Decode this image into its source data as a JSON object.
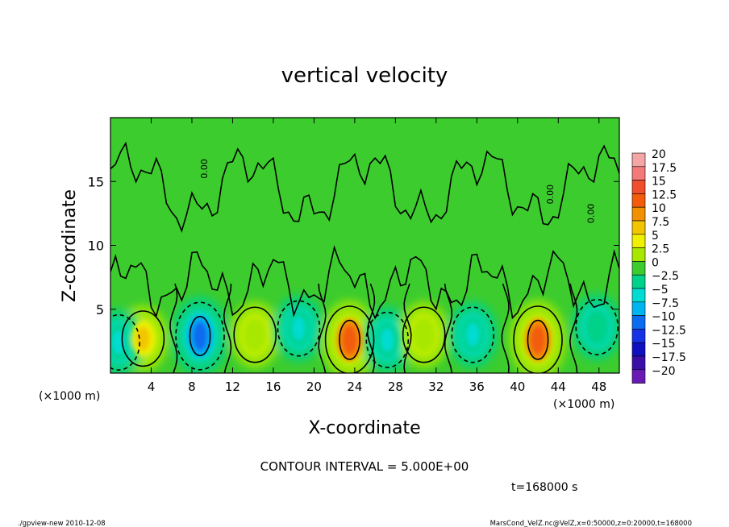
{
  "chart_data": {
    "type": "heatmap",
    "title": "vertical velocity",
    "xlabel": "X-coordinate",
    "ylabel": "Z-coordinate",
    "x_unit_left": "(×1000 m)",
    "x_unit_right": "(×1000 m)",
    "xlim": [
      0,
      50
    ],
    "ylim": [
      0,
      20
    ],
    "x_ticks": [
      4,
      8,
      12,
      16,
      20,
      24,
      28,
      32,
      36,
      40,
      44,
      48
    ],
    "y_ticks": [
      5,
      10,
      15
    ],
    "colorbar": {
      "labels": [
        "20",
        "17.5",
        "15",
        "12.5",
        "10",
        "7.5",
        "5",
        "2.5",
        "0",
        "−2.5",
        "−5",
        "−7.5",
        "−10",
        "−12.5",
        "−15",
        "−17.5",
        "−20"
      ],
      "colors": [
        "#f4a6a6",
        "#f47a7a",
        "#f04e2c",
        "#f25c0a",
        "#f29000",
        "#f2c500",
        "#eef000",
        "#a8e800",
        "#3ccc2e",
        "#00d28a",
        "#00dcd2",
        "#00b4f0",
        "#0a6cf0",
        "#1632e6",
        "#1010c0",
        "#3a0fa8",
        "#6a1ab4"
      ]
    },
    "contour_interval": "CONTOUR INTERVAL = 5.000E+00",
    "time_label": "t=168000 s",
    "zero_label": "0.00",
    "features": [
      {
        "kind": "updraft",
        "x": 3.2,
        "z": 2.7,
        "value": 7.5
      },
      {
        "kind": "downdraft",
        "x": 0.8,
        "z": 2.4,
        "value": -5
      },
      {
        "kind": "downdraft",
        "x": 8.8,
        "z": 2.9,
        "value": -10
      },
      {
        "kind": "updraft",
        "x": 14.2,
        "z": 3.0,
        "value": 2.5
      },
      {
        "kind": "downdraft",
        "x": 18.5,
        "z": 3.5,
        "value": -5
      },
      {
        "kind": "updraft",
        "x": 23.5,
        "z": 2.6,
        "value": 12.5
      },
      {
        "kind": "downdraft",
        "x": 27.2,
        "z": 2.6,
        "value": -5
      },
      {
        "kind": "updraft",
        "x": 30.8,
        "z": 3.0,
        "value": 2.5
      },
      {
        "kind": "downdraft",
        "x": 35.6,
        "z": 3.0,
        "value": -5
      },
      {
        "kind": "updraft",
        "x": 42.0,
        "z": 2.6,
        "value": 12.5
      },
      {
        "kind": "downdraft",
        "x": 47.8,
        "z": 3.6,
        "value": -2.5
      }
    ]
  },
  "footer": {
    "left": "./gpview-new  2010-12-08",
    "right": "MarsCond_VelZ.nc@VelZ,x=0:50000,z=0:20000,t=168000"
  }
}
